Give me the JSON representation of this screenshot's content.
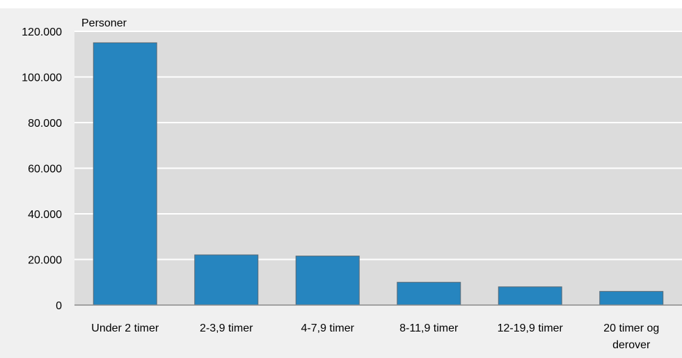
{
  "chart_data": {
    "type": "bar",
    "unit_label": "Personer",
    "categories": [
      [
        "Under 2 timer"
      ],
      [
        "2-3,9 timer"
      ],
      [
        "4-7,9 timer"
      ],
      [
        "8-11,9 timer"
      ],
      [
        "12-19,9 timer"
      ],
      [
        "20 timer og",
        "derover"
      ]
    ],
    "values": [
      115000,
      22000,
      21500,
      10000,
      8000,
      6000
    ],
    "y_ticks": [
      0,
      20000,
      40000,
      60000,
      80000,
      100000,
      120000
    ],
    "y_tick_labels": [
      "0",
      "20.000",
      "40.000",
      "60.000",
      "80.000",
      "100.000",
      "120.000"
    ],
    "ylim": [
      0,
      120000
    ],
    "grid": true,
    "colors": {
      "bar": "#2685bf",
      "bar_outline": "#5a6a76",
      "plot_bg": "#dcdcdc",
      "outer_bg": "#f0f0f0",
      "grid": "#ffffff",
      "axis": "#8a8a8a"
    }
  }
}
